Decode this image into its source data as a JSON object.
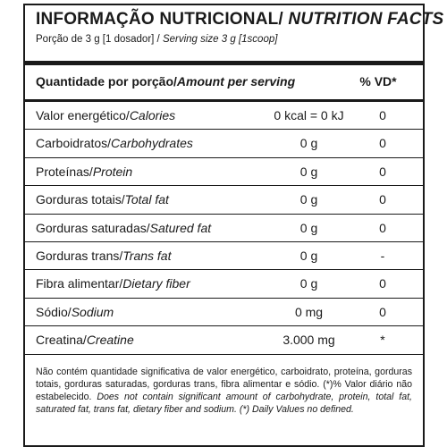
{
  "header": {
    "title_pt": "INFORMAÇÃO NUTRICIONAL/",
    "title_en": "NUTRITION FACTS",
    "serving_pt": "Porção de 3 g  [1 dosador] /",
    "serving_en": "Serving size 3 g  [1scoop]"
  },
  "table": {
    "header": {
      "name_pt": "Quantidade por porção/",
      "name_en": "Amount per serving",
      "vd": "% VD*"
    },
    "rows": [
      {
        "name_pt": "Valor energético/",
        "name_en": "Calories",
        "amount": "0 kcal = 0 kJ",
        "vd": "0"
      },
      {
        "name_pt": "Carboidratos/",
        "name_en": "Carbohydrates",
        "amount": "0 g",
        "vd": "0"
      },
      {
        "name_pt": "Proteínas/",
        "name_en": "Protein",
        "amount": "0 g",
        "vd": "0"
      },
      {
        "name_pt": "Gorduras totais/",
        "name_en": "Total fat",
        "amount": "0 g",
        "vd": "0"
      },
      {
        "name_pt": "Gorduras saturadas/",
        "name_en": "Satured fat",
        "amount": "0 g",
        "vd": "0"
      },
      {
        "name_pt": "Gorduras trans/",
        "name_en": "Trans fat",
        "amount": "0 g",
        "vd": "-"
      },
      {
        "name_pt": "Fibra alimentar/",
        "name_en": "Dietary fiber",
        "amount": "0 g",
        "vd": "0"
      },
      {
        "name_pt": "Sódio/",
        "name_en": "Sodium",
        "amount": "0 mg",
        "vd": "0"
      },
      {
        "name_pt": "Creatina/",
        "name_en": "Creatine",
        "amount": "3.000 mg",
        "vd": "*"
      }
    ]
  },
  "footnote": {
    "pt": "Não contém quantidade significativa de valor energético, carboidrato, proteína, gorduras totais, gorduras saturadas, gorduras trans, fibra alimentar e sódio. (*)% Valor diário não estabelecido.",
    "en": "Does not contain significant amount of carbohydrate, protein, total fat, saturated fat, trans fat, dietary fiber and sodium. (*) Daily Values no defined."
  }
}
